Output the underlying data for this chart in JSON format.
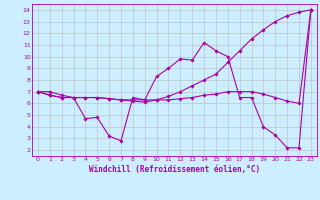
{
  "xlabel": "Windchill (Refroidissement éolien,°C)",
  "background_color": "#cceeff",
  "line_color": "#aa00aa",
  "grid_color": "#bbbbbb",
  "xlim": [
    -0.5,
    23.5
  ],
  "ylim": [
    1.5,
    14.5
  ],
  "yticks": [
    2,
    3,
    4,
    5,
    6,
    7,
    8,
    9,
    10,
    11,
    12,
    13,
    14
  ],
  "xticks": [
    0,
    1,
    2,
    3,
    4,
    5,
    6,
    7,
    8,
    9,
    10,
    11,
    12,
    13,
    14,
    15,
    16,
    17,
    18,
    19,
    20,
    21,
    22,
    23
  ],
  "series": [
    [
      7.0,
      7.0,
      6.7,
      6.5,
      4.7,
      4.8,
      3.2,
      2.8,
      6.5,
      6.3,
      8.3,
      9.0,
      9.8,
      9.7,
      11.2,
      10.5,
      10.0,
      6.5,
      6.5,
      4.0,
      3.3,
      2.2,
      2.2,
      14.0
    ],
    [
      7.0,
      6.7,
      6.5,
      6.5,
      6.5,
      6.5,
      6.4,
      6.3,
      6.3,
      6.3,
      6.3,
      6.3,
      6.4,
      6.5,
      6.7,
      6.8,
      7.0,
      7.0,
      7.0,
      6.8,
      6.5,
      6.2,
      6.0,
      14.0
    ],
    [
      7.0,
      6.7,
      6.5,
      6.5,
      6.5,
      6.5,
      6.4,
      6.3,
      6.2,
      6.1,
      6.3,
      6.6,
      7.0,
      7.5,
      8.0,
      8.5,
      9.5,
      10.5,
      11.5,
      12.3,
      13.0,
      13.5,
      13.8,
      14.0
    ]
  ],
  "xlabel_fontsize": 5.5,
  "tick_fontsize": 4.5,
  "linewidth": 0.8,
  "markersize": 1.8
}
